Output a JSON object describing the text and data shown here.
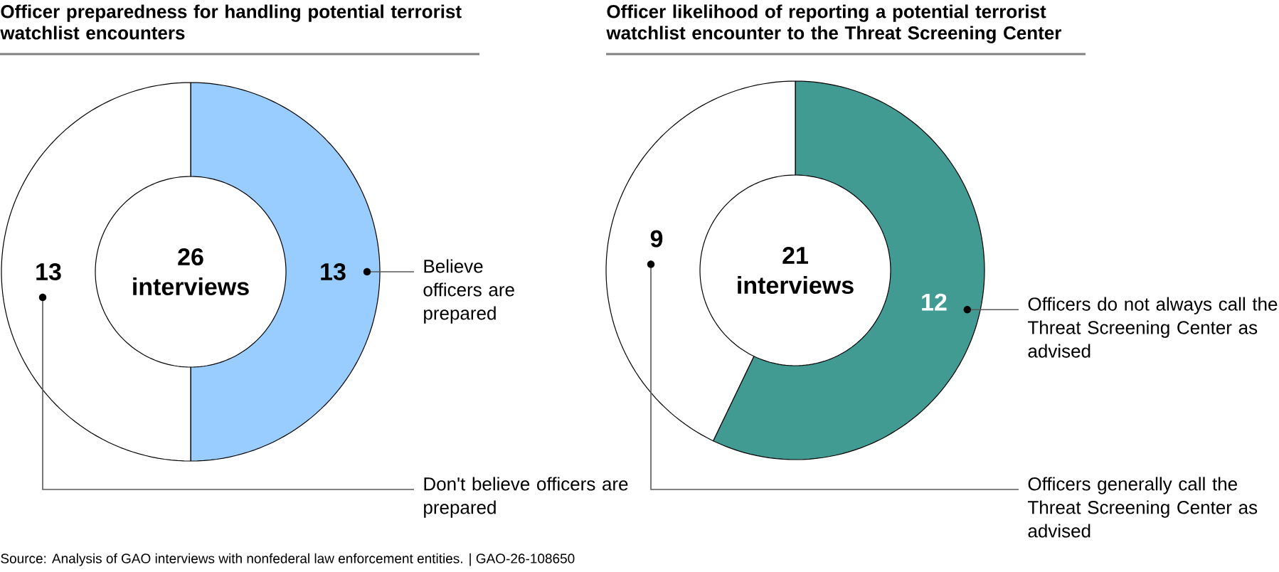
{
  "chart_data": [
    {
      "type": "donut",
      "title": "Officer preparedness for handling potential terrorist watchlist encounters",
      "categories": [
        "Believe officers are prepared",
        "Don't believe officers are prepared"
      ],
      "values": [
        13,
        13
      ],
      "colors": [
        "#99ccff",
        "#ffffff"
      ],
      "data_labels": true,
      "annotations": [
        "26 interviews",
        "Source: Analysis of GAO interviews with nonfederal law enforcement entities.  |  GAO-26-108650"
      ]
    },
    {
      "type": "donut",
      "title": "Officer likelihood of reporting a potential terrorist watchlist encounter to the Threat Screening Center",
      "categories": [
        "Officers do not always call the Threat Screening Center as advised",
        "Officers generally call the Threat Screening Center as advised"
      ],
      "values": [
        12,
        9
      ],
      "colors": [
        "#429b93",
        "#ffffff"
      ],
      "data_labels": true,
      "annotations": [
        "21 interviews"
      ]
    }
  ]
}
